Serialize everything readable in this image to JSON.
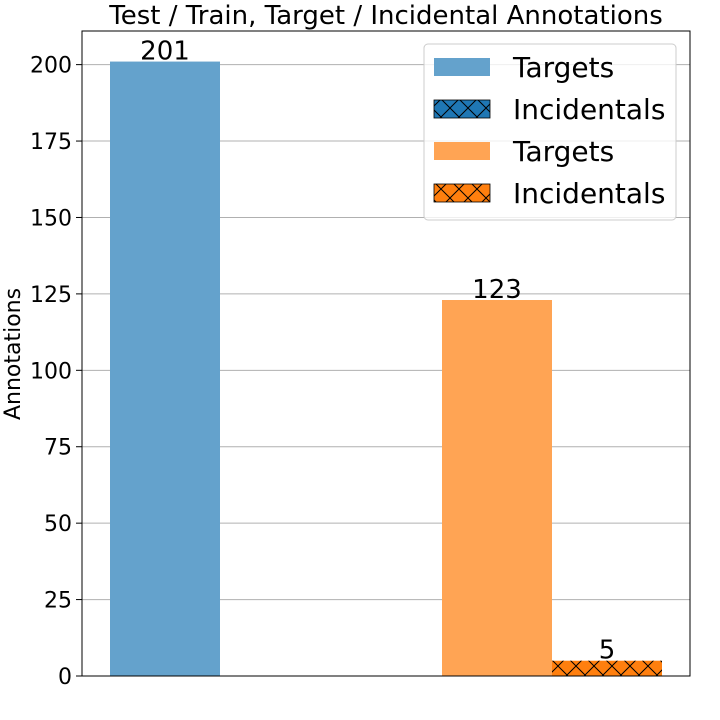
{
  "chart_data": {
    "type": "bar",
    "title": "Test / Train, Target / Incidental Annotations",
    "xlabel": "",
    "ylabel": "Annotations",
    "ylim": [
      0,
      211
    ],
    "yticks": [
      0,
      25,
      50,
      75,
      100,
      125,
      150,
      175,
      200
    ],
    "grid": "y",
    "legend_position": "top-right",
    "groups": [
      {
        "bars": [
          {
            "series": "Targets",
            "value": 201,
            "label": "201",
            "color": "#64a2cc",
            "hatch": false
          }
        ]
      },
      {
        "bars": [
          {
            "series": "Targets",
            "value": 123,
            "label": "123",
            "color": "#ffa454",
            "hatch": false
          },
          {
            "series": "Incidentals",
            "value": 5,
            "label": "5",
            "color": "#ff7f0e",
            "hatch": true
          }
        ]
      }
    ],
    "legend": [
      {
        "label": "Targets",
        "color": "#64a2cc",
        "hatch": false
      },
      {
        "label": "Incidentals",
        "color": "#1f77b4",
        "hatch": true
      },
      {
        "label": "Targets",
        "color": "#ffa454",
        "hatch": false
      },
      {
        "label": "Incidentals",
        "color": "#ff7f0e",
        "hatch": true
      }
    ]
  }
}
